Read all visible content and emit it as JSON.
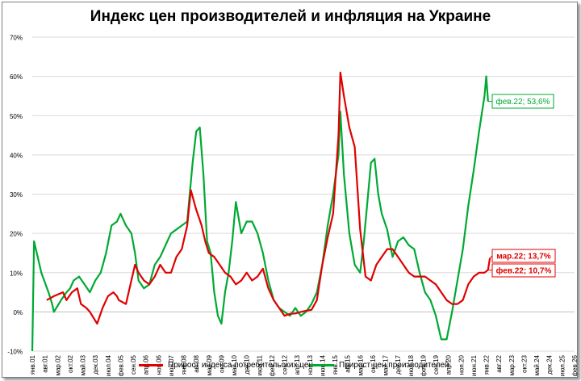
{
  "chart_data": {
    "type": "line",
    "title": "Индекс цен производителей и инфляция на Украине",
    "xlabel": "",
    "ylabel": "",
    "ylim": [
      -10,
      70
    ],
    "y_ticks": [
      "-10%",
      "0%",
      "10%",
      "20%",
      "30%",
      "40%",
      "50%",
      "60%",
      "70%"
    ],
    "y_tick_values": [
      -10,
      0,
      10,
      20,
      30,
      40,
      50,
      60,
      70
    ],
    "x_tick_labels": [
      "янв.01",
      "авг.01",
      "мар.02",
      "окт.02",
      "май.03",
      "дек.03",
      "июл.04",
      "фев.05",
      "сен.05",
      "апр.06",
      "ноя.06",
      "июн.07",
      "янв.08",
      "авг.08",
      "мар.09",
      "окт.09",
      "май.10",
      "дек.10",
      "июл.11",
      "фев.12",
      "сен.12",
      "апр.13",
      "ноя.13",
      "июн.14",
      "янв.15",
      "авг.15",
      "мар.16",
      "окт.16",
      "май.17",
      "дек.17",
      "июл.18",
      "фев.19",
      "сен.19",
      "апр.20",
      "ноя.20",
      "июн.21",
      "янв.22",
      "авг.22",
      "мар.23",
      "окт.23",
      "май.24",
      "дек.24",
      "июл.25",
      "фев.26"
    ],
    "x_range": [
      "2001-01",
      "2026-02"
    ],
    "grid": "horizontal",
    "legend_position": "bottom",
    "series": [
      {
        "name": "Прирост индекса потребительских цен",
        "color": "#e00000",
        "x": [
          "2001-09",
          "2002-01",
          "2002-06",
          "2002-08",
          "2002-11",
          "2003-02",
          "2003-04",
          "2003-07",
          "2003-09",
          "2004-01",
          "2004-04",
          "2004-07",
          "2004-10",
          "2004-12",
          "2005-01",
          "2005-05",
          "2005-08",
          "2005-10",
          "2005-12",
          "2006-03",
          "2006-06",
          "2006-09",
          "2006-12",
          "2007-03",
          "2007-06",
          "2007-09",
          "2007-12",
          "2008-03",
          "2008-05",
          "2008-08",
          "2008-11",
          "2009-01",
          "2009-03",
          "2009-06",
          "2009-09",
          "2009-12",
          "2010-03",
          "2010-06",
          "2010-09",
          "2010-12",
          "2011-03",
          "2011-06",
          "2011-09",
          "2011-12",
          "2012-03",
          "2012-06",
          "2012-09",
          "2012-12",
          "2013-03",
          "2013-06",
          "2013-09",
          "2013-12",
          "2014-03",
          "2014-06",
          "2014-09",
          "2014-12",
          "2015-03",
          "2015-04",
          "2015-06",
          "2015-09",
          "2015-12",
          "2016-03",
          "2016-06",
          "2016-09",
          "2016-12",
          "2017-03",
          "2017-06",
          "2017-09",
          "2017-12",
          "2018-03",
          "2018-06",
          "2018-09",
          "2018-12",
          "2019-03",
          "2019-06",
          "2019-09",
          "2019-12",
          "2020-03",
          "2020-06",
          "2020-09",
          "2020-12",
          "2021-03",
          "2021-06",
          "2021-09",
          "2021-12",
          "2022-02",
          "2022-03"
        ],
        "values": [
          3,
          4,
          5,
          3,
          5,
          6,
          2,
          1,
          0,
          -3,
          1,
          4,
          5,
          4,
          3,
          2,
          8,
          12,
          10,
          8,
          7,
          9,
          12,
          10,
          10,
          14,
          16,
          22,
          31,
          26,
          22,
          18,
          15,
          14,
          12,
          10,
          9,
          7,
          8,
          10,
          8,
          9,
          11,
          6,
          3,
          1,
          -1,
          -0.5,
          -0.4,
          0,
          0.3,
          0.5,
          3,
          12,
          19,
          25,
          45,
          61,
          55,
          47,
          42,
          21,
          9,
          8,
          12,
          14,
          16,
          16,
          14,
          12,
          10,
          9,
          9,
          9,
          8,
          7,
          5,
          3,
          2,
          2,
          3,
          7,
          9,
          10,
          10,
          10.7,
          13.7
        ]
      },
      {
        "name": "Прирост цен производителей",
        "color": "#00a933",
        "x": [
          "2001-01",
          "2001-02",
          "2001-06",
          "2001-10",
          "2001-12",
          "2002-01",
          "2002-05",
          "2002-08",
          "2002-10",
          "2002-12",
          "2003-03",
          "2003-06",
          "2003-09",
          "2003-12",
          "2004-03",
          "2004-06",
          "2004-09",
          "2004-12",
          "2005-02",
          "2005-05",
          "2005-08",
          "2005-10",
          "2005-12",
          "2006-03",
          "2006-06",
          "2006-09",
          "2006-12",
          "2007-03",
          "2007-06",
          "2007-09",
          "2007-12",
          "2008-03",
          "2008-06",
          "2008-08",
          "2008-10",
          "2008-12",
          "2009-02",
          "2009-04",
          "2009-06",
          "2009-08",
          "2009-10",
          "2009-12",
          "2010-02",
          "2010-04",
          "2010-06",
          "2010-09",
          "2010-12",
          "2011-03",
          "2011-06",
          "2011-09",
          "2011-12",
          "2012-03",
          "2012-06",
          "2012-09",
          "2012-12",
          "2013-03",
          "2013-06",
          "2013-09",
          "2013-12",
          "2014-03",
          "2014-06",
          "2014-09",
          "2014-12",
          "2015-03",
          "2015-04",
          "2015-06",
          "2015-09",
          "2015-12",
          "2016-03",
          "2016-05",
          "2016-07",
          "2016-09",
          "2016-11",
          "2017-01",
          "2017-03",
          "2017-06",
          "2017-09",
          "2017-12",
          "2018-03",
          "2018-06",
          "2018-09",
          "2018-12",
          "2019-03",
          "2019-06",
          "2019-09",
          "2019-12",
          "2020-03",
          "2020-06",
          "2020-09",
          "2020-12",
          "2021-03",
          "2021-06",
          "2021-09",
          "2021-12",
          "2022-01",
          "2022-02"
        ],
        "values": [
          -10,
          18,
          10,
          5,
          2,
          0,
          3,
          5,
          6,
          8,
          9,
          7,
          5,
          8,
          10,
          15,
          22,
          23,
          25,
          22,
          20,
          15,
          8,
          6,
          7,
          12,
          14,
          17,
          20,
          21,
          22,
          23,
          38,
          46,
          47,
          35,
          18,
          15,
          5,
          -1,
          -3,
          5,
          10,
          18,
          28,
          20,
          23,
          23,
          20,
          15,
          8,
          3,
          1,
          0,
          -1,
          1,
          -1,
          0,
          2,
          5,
          12,
          22,
          30,
          40,
          51,
          35,
          20,
          12,
          10,
          18,
          28,
          38,
          39,
          30,
          25,
          21,
          14,
          18,
          19,
          17,
          16,
          10,
          5,
          3,
          -1,
          -7,
          -7,
          0,
          8,
          16,
          27,
          36,
          46,
          55,
          60,
          53.6
        ]
      }
    ],
    "annotations": [
      {
        "text": "фев.22; 53,6%",
        "series": "Прирост цен производителей"
      },
      {
        "text": "мар.22; 13,7%",
        "series": "Прирост индекса потребительских цен"
      },
      {
        "text": "фев.22; 10,7%",
        "series": "Прирост индекса потребительских цен"
      }
    ]
  }
}
